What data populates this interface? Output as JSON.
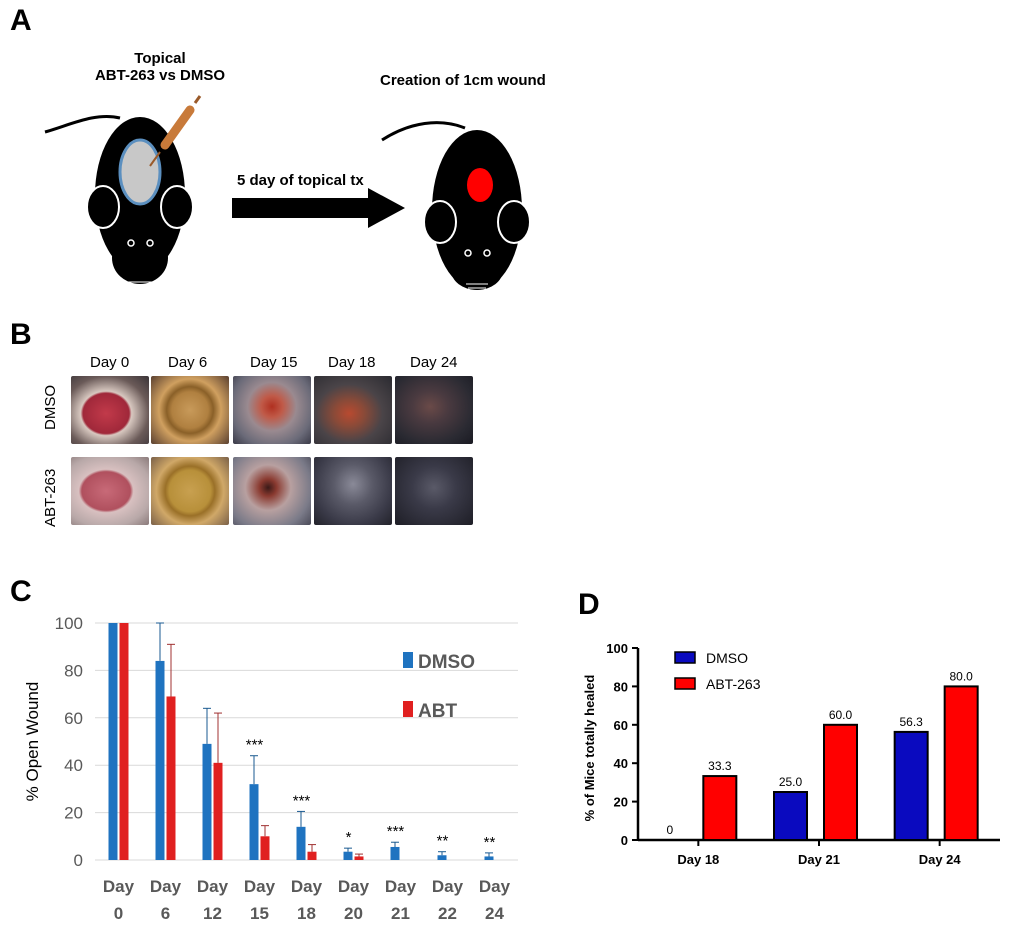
{
  "panels": {
    "a": "A",
    "b": "B",
    "c": "C",
    "d": "D"
  },
  "panel_a": {
    "left_caption_line1": "Topical",
    "left_caption_line2": "ABT-263 vs DMSO",
    "arrow_label": "5 day of topical tx",
    "right_caption": "Creation of 1cm wound"
  },
  "panel_b": {
    "columns": [
      "Day 0",
      "Day 6",
      "Day 15",
      "Day 18",
      "Day 24"
    ],
    "rows": [
      "DMSO",
      "ABT-263"
    ]
  },
  "colors": {
    "dmso_c": "#1f73c0",
    "abt_c": "#e02020",
    "dmso_d": "#0a0abf",
    "abt_d": "#ff0000"
  },
  "chart_data": [
    {
      "type": "bar",
      "panel": "C",
      "ylabel": "% Open Wound",
      "ylim": [
        0,
        100
      ],
      "yticks": [
        0,
        20,
        40,
        60,
        80,
        100
      ],
      "categories": [
        [
          "Day",
          "0"
        ],
        [
          "Day",
          "6"
        ],
        [
          "Day",
          "12"
        ],
        [
          "Day",
          "15"
        ],
        [
          "Day",
          "18"
        ],
        [
          "Day",
          "20"
        ],
        [
          "Day",
          "21"
        ],
        [
          "Day",
          "22"
        ],
        [
          "Day",
          "24"
        ]
      ],
      "series": [
        {
          "name": "DMSO",
          "values": [
            100,
            84,
            49,
            32,
            14,
            3.5,
            5.5,
            2,
            1.5
          ],
          "errors": [
            0,
            16,
            15,
            12,
            6.5,
            1.5,
            2,
            1.5,
            1.5
          ]
        },
        {
          "name": "ABT",
          "values": [
            100,
            69,
            41,
            10,
            3.5,
            1.5,
            0,
            0,
            0
          ],
          "errors": [
            0,
            22,
            21,
            4.5,
            3,
            1,
            0,
            0,
            0
          ]
        }
      ],
      "significance": [
        "",
        "",
        "",
        "***",
        "***",
        "*",
        "***",
        "**",
        "**"
      ],
      "legend": [
        "DMSO",
        "ABT"
      ]
    },
    {
      "type": "bar",
      "panel": "D",
      "ylabel": "% of Mice totally healed",
      "ylim": [
        0,
        100
      ],
      "yticks": [
        0,
        20,
        40,
        60,
        80,
        100
      ],
      "categories": [
        "Day 18",
        "Day 21",
        "Day 24"
      ],
      "series": [
        {
          "name": "DMSO",
          "values": [
            0,
            25.0,
            56.3
          ],
          "labels": [
            "0",
            "25.0",
            "56.3"
          ]
        },
        {
          "name": "ABT-263",
          "values": [
            33.3,
            60.0,
            80.0
          ],
          "labels": [
            "33.3",
            "60.0",
            "80.0"
          ]
        }
      ],
      "legend": [
        "DMSO",
        "ABT-263"
      ]
    }
  ]
}
